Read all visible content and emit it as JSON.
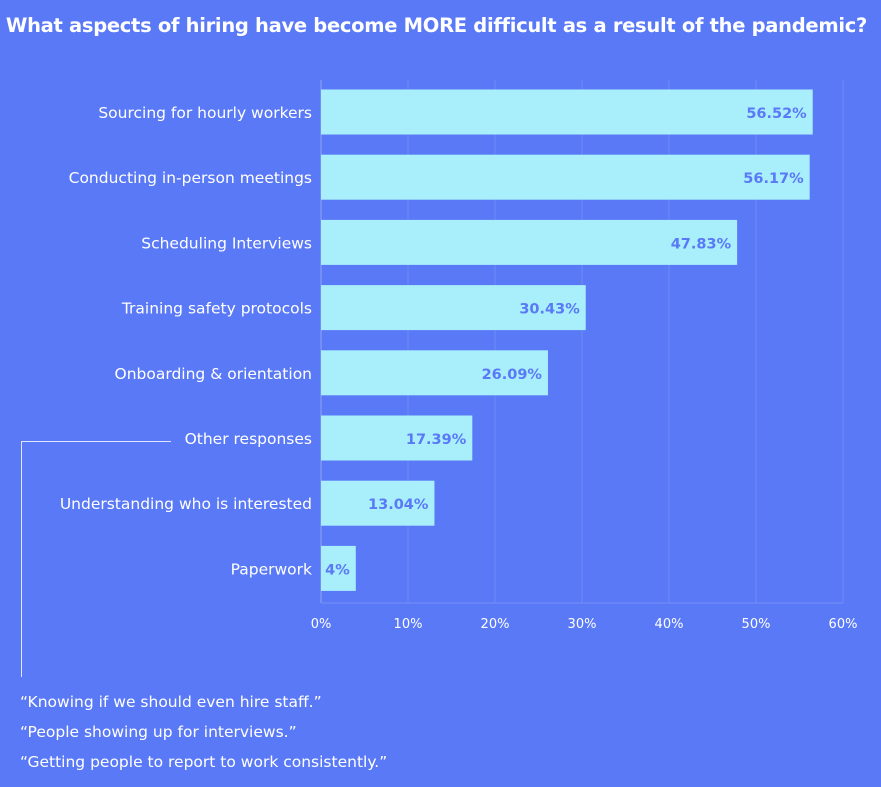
{
  "chart_data": {
    "type": "bar",
    "orientation": "horizontal",
    "title": "What aspects of hiring have become MORE difficult as a result of the pandemic?",
    "categories": [
      "Sourcing for hourly workers",
      "Conducting in-person meetings",
      "Scheduling Interviews",
      "Training safety protocols",
      "Onboarding & orientation",
      "Other responses",
      "Understanding who is interested",
      "Paperwork"
    ],
    "values": [
      56.52,
      56.17,
      47.83,
      30.43,
      26.09,
      17.39,
      13.04,
      4
    ],
    "data_labels": [
      "56.52%",
      "56.17%",
      "47.83%",
      "30.43%",
      "26.09%",
      "17.39%",
      "13.04%",
      "4%"
    ],
    "xlim": [
      0,
      60
    ],
    "xticks": [
      "0%",
      "10%",
      "20%",
      "30%",
      "40%",
      "50%",
      "60%"
    ],
    "grid": true,
    "colors": {
      "background": "#5a79f7",
      "bar": "#a8eefb",
      "data_label": "#5a79f7",
      "text": "#ffffff",
      "grid": "#6e89f5"
    }
  },
  "quotes": [
    "“Knowing if we should even hire staff.”",
    "“People showing up for interviews.”",
    "“Getting people to report to work consistently.”"
  ]
}
